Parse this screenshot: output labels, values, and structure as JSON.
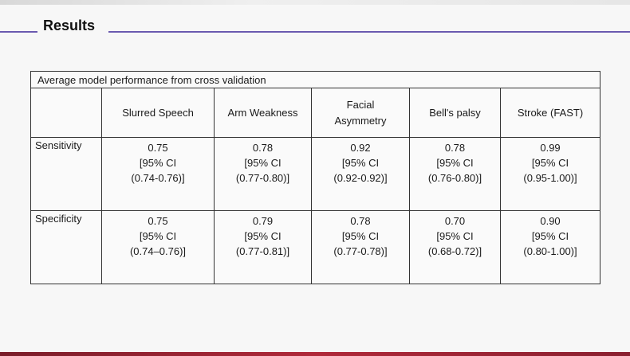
{
  "slide": {
    "title": "Results"
  },
  "table": {
    "caption": "Average model performance from cross validation",
    "columns": [
      "Slurred Speech",
      "Arm Weakness",
      "Facial Asymmetry",
      "Bell's palsy",
      "Stroke (FAST)"
    ],
    "rows": [
      {
        "label": "Sensitivity",
        "cells": [
          {
            "value": "0.75",
            "ci_label": "[95% CI",
            "ci_range": "(0.74-0.76)]"
          },
          {
            "value": "0.78",
            "ci_label": "[95% CI",
            "ci_range": "(0.77-0.80)]"
          },
          {
            "value": "0.92",
            "ci_label": "[95% CI",
            "ci_range": "(0.92-0.92)]"
          },
          {
            "value": "0.78",
            "ci_label": "[95% CI",
            "ci_range": "(0.76-0.80)]"
          },
          {
            "value": "0.99",
            "ci_label": "[95% CI",
            "ci_range": "(0.95-1.00)]"
          }
        ]
      },
      {
        "label": "Specificity",
        "cells": [
          {
            "value": "0.75",
            "ci_label": "[95% CI",
            "ci_range": "(0.74–0.76)]"
          },
          {
            "value": "0.79",
            "ci_label": "[95% CI",
            "ci_range": "(0.77-0.81)]"
          },
          {
            "value": "0.78",
            "ci_label": "[95% CI",
            "ci_range": "(0.77-0.78)]"
          },
          {
            "value": "0.70",
            "ci_label": "[95% CI",
            "ci_range": "(0.68-0.72)]"
          },
          {
            "value": "0.90",
            "ci_label": "[95% CI",
            "ci_range": "(0.80-1.00)]"
          }
        ]
      }
    ]
  },
  "colors": {
    "accent_rule": "#6a5ab0",
    "bottom_bar": "#b0293a"
  }
}
